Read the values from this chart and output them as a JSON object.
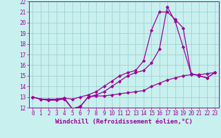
{
  "xlabel": "Windchill (Refroidissement éolien,°C)",
  "xlim": [
    -0.5,
    23.5
  ],
  "ylim": [
    12,
    22
  ],
  "xticks": [
    0,
    1,
    2,
    3,
    4,
    5,
    6,
    7,
    8,
    9,
    10,
    11,
    12,
    13,
    14,
    15,
    16,
    17,
    18,
    19,
    20,
    21,
    22,
    23
  ],
  "yticks": [
    12,
    13,
    14,
    15,
    16,
    17,
    18,
    19,
    20,
    21,
    22
  ],
  "background_color": "#c8f0ee",
  "grid_color": "#99cccc",
  "line_color": "#990099",
  "line1_x": [
    0,
    1,
    2,
    3,
    4,
    5,
    6,
    7,
    8,
    9,
    10,
    11,
    12,
    13,
    14,
    15,
    16,
    17,
    18,
    19,
    20,
    21,
    22,
    23
  ],
  "line1_y": [
    13.0,
    12.8,
    12.8,
    12.8,
    12.9,
    11.9,
    12.1,
    13.0,
    13.1,
    13.1,
    13.2,
    13.3,
    13.4,
    13.5,
    13.6,
    14.0,
    14.3,
    14.6,
    14.8,
    15.0,
    15.1,
    15.1,
    15.2,
    15.3
  ],
  "line2_x": [
    0,
    1,
    2,
    3,
    4,
    5,
    6,
    7,
    8,
    9,
    10,
    11,
    12,
    13,
    14,
    15,
    16,
    17,
    18,
    19,
    20,
    21,
    22,
    23
  ],
  "line2_y": [
    13.0,
    12.8,
    12.7,
    12.8,
    12.9,
    12.8,
    13.0,
    13.2,
    13.5,
    14.0,
    14.5,
    15.0,
    15.3,
    15.5,
    16.4,
    19.3,
    21.0,
    21.0,
    20.3,
    19.5,
    15.2,
    15.0,
    14.8,
    15.3
  ],
  "line3_x": [
    0,
    1,
    2,
    3,
    4,
    5,
    6,
    7,
    8,
    9,
    10,
    11,
    12,
    13,
    14,
    15,
    16,
    17,
    18,
    19,
    20,
    21,
    22,
    23
  ],
  "line3_y": [
    13.0,
    12.8,
    12.7,
    12.7,
    12.8,
    11.9,
    12.1,
    13.0,
    13.2,
    13.5,
    14.0,
    14.5,
    15.0,
    15.3,
    15.5,
    16.2,
    17.5,
    21.5,
    20.1,
    17.7,
    15.2,
    15.0,
    14.8,
    15.3
  ],
  "marker": "D",
  "markersize": 2.2,
  "linewidth": 0.9,
  "tick_fontsize": 5.5,
  "xlabel_fontsize": 6.5
}
